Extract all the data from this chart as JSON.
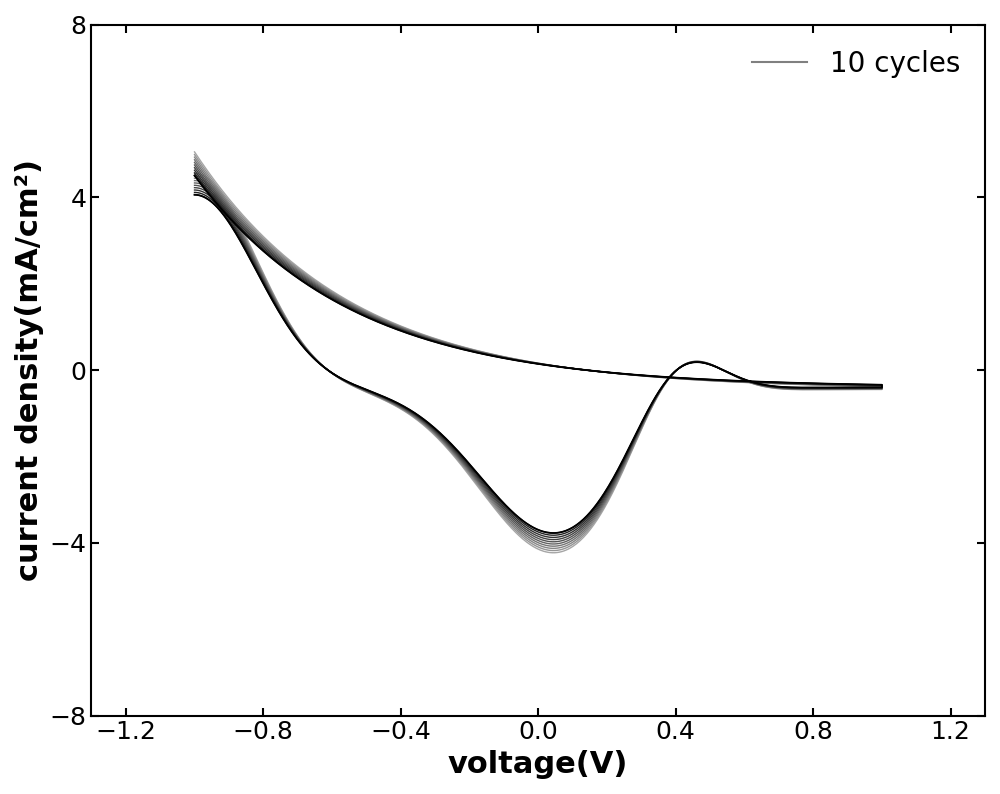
{
  "title": "",
  "xlabel": "voltage(V)",
  "ylabel": "current density(mA/cm²)",
  "xlim": [
    -1.3,
    1.3
  ],
  "ylim": [
    -8,
    8
  ],
  "xticks": [
    -1.2,
    -0.8,
    -0.4,
    0.0,
    0.4,
    0.8,
    1.2
  ],
  "yticks": [
    -8,
    -4,
    0,
    4,
    8
  ],
  "n_cycles": 10,
  "legend_label": "10 cycles",
  "line_color_dark": "#000000",
  "line_color_light": "#aaaaaa",
  "xlabel_fontsize": 22,
  "ylabel_fontsize": 22,
  "tick_fontsize": 18,
  "legend_fontsize": 20,
  "linewidth": 1.0,
  "background_color": "#ffffff"
}
